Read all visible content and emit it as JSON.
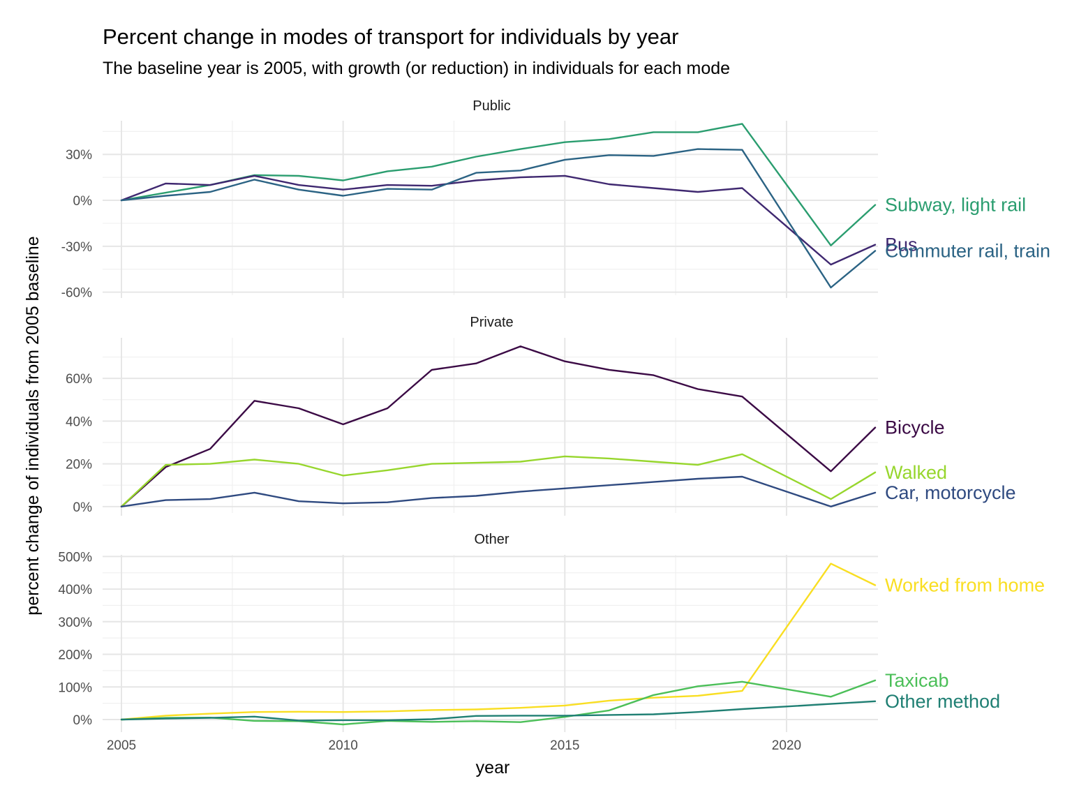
{
  "chart_data": {
    "type": "line",
    "title": "Percent change in modes of transport for individuals by year",
    "subtitle": "The baseline year is 2005, with growth (or reduction) in individuals for each mode",
    "xlabel": "year",
    "ylabel": "percent change of individuals from 2005 baseline",
    "x": [
      2005,
      2006,
      2007,
      2008,
      2009,
      2010,
      2011,
      2012,
      2013,
      2014,
      2015,
      2016,
      2017,
      2018,
      2019,
      2021,
      2022
    ],
    "x_ticks": [
      "2005",
      "2010",
      "2015",
      "2020"
    ],
    "xlim": [
      2005,
      2022
    ],
    "grid": true,
    "legend": "direct labels at line ends",
    "panels": [
      {
        "name": "Public",
        "ylim": [
          -62,
          52
        ],
        "y_ticks": [
          -60,
          -30,
          0,
          30
        ],
        "y_tick_labels": [
          "-60%",
          "-30%",
          "0%",
          "30%"
        ],
        "series": [
          {
            "name": "Subway, light rail",
            "color": "#2a9d6f",
            "values": [
              0,
              5,
              10,
              16.5,
              16,
              13,
              19,
              22,
              28.5,
              33.5,
              38,
              40,
              44.5,
              44.5,
              50,
              -29.5,
              -3
            ]
          },
          {
            "name": "Bus",
            "color": "#3f2870",
            "values": [
              0,
              11,
              10,
              16,
              10,
              7,
              10,
              9.5,
              13,
              15,
              16,
              10.5,
              8,
              5.5,
              8,
              -42,
              -29
            ]
          },
          {
            "name": "Commuter rail, train",
            "color": "#2b6384",
            "values": [
              0,
              3,
              5.5,
              13.5,
              7,
              3,
              7.5,
              7,
              18,
              19.5,
              26.5,
              29.5,
              29,
              33.5,
              33,
              -57,
              -33
            ]
          }
        ]
      },
      {
        "name": "Private",
        "ylim": [
          -3,
          79
        ],
        "y_ticks": [
          0,
          20,
          40,
          60
        ],
        "y_tick_labels": [
          "0%",
          "20%",
          "40%",
          "60%"
        ],
        "series": [
          {
            "name": "Bicycle",
            "color": "#3b0a45",
            "values": [
              0,
              18.5,
              27,
              49.5,
              46,
              38.5,
              46,
              64,
              67,
              75,
              68,
              64,
              61.5,
              55,
              51.5,
              16.5,
              37
            ]
          },
          {
            "name": "Walked",
            "color": "#97d62d",
            "values": [
              0,
              19.5,
              20,
              22,
              20,
              14.5,
              17,
              20,
              20.5,
              21,
              23.5,
              22.5,
              21,
              19.5,
              24.5,
              3.5,
              16
            ]
          },
          {
            "name": "Car, motorcycle",
            "color": "#2f4a80",
            "values": [
              0,
              3,
              3.5,
              6.5,
              2.5,
              1.5,
              2,
              4,
              5,
              7,
              8.5,
              10,
              11.5,
              13,
              14,
              0,
              6.5
            ]
          }
        ]
      },
      {
        "name": "Other",
        "ylim": [
          -30,
          505
        ],
        "y_ticks": [
          0,
          100,
          200,
          300,
          400,
          500
        ],
        "y_tick_labels": [
          "0%",
          "100%",
          "200%",
          "300%",
          "400%",
          "500%"
        ],
        "series": [
          {
            "name": "Worked from home",
            "color": "#f9de22",
            "values": [
              0,
              12,
              18,
              23,
              24,
              23,
              25,
              29,
              31,
              36,
              43,
              58,
              67,
              73,
              88,
              478,
              412
            ]
          },
          {
            "name": "Taxicab",
            "color": "#4bbf58",
            "values": [
              0,
              5,
              6,
              -4,
              -5,
              -15,
              -4,
              -7,
              -5,
              -8,
              8,
              28,
              75,
              102,
              116,
              70,
              120
            ]
          },
          {
            "name": "Other method",
            "color": "#1f7f73",
            "values": [
              0,
              3,
              5,
              9,
              -3,
              -2,
              -2,
              1,
              11,
              12,
              12,
              14,
              16,
              23,
              32,
              48,
              56
            ]
          }
        ]
      }
    ]
  }
}
